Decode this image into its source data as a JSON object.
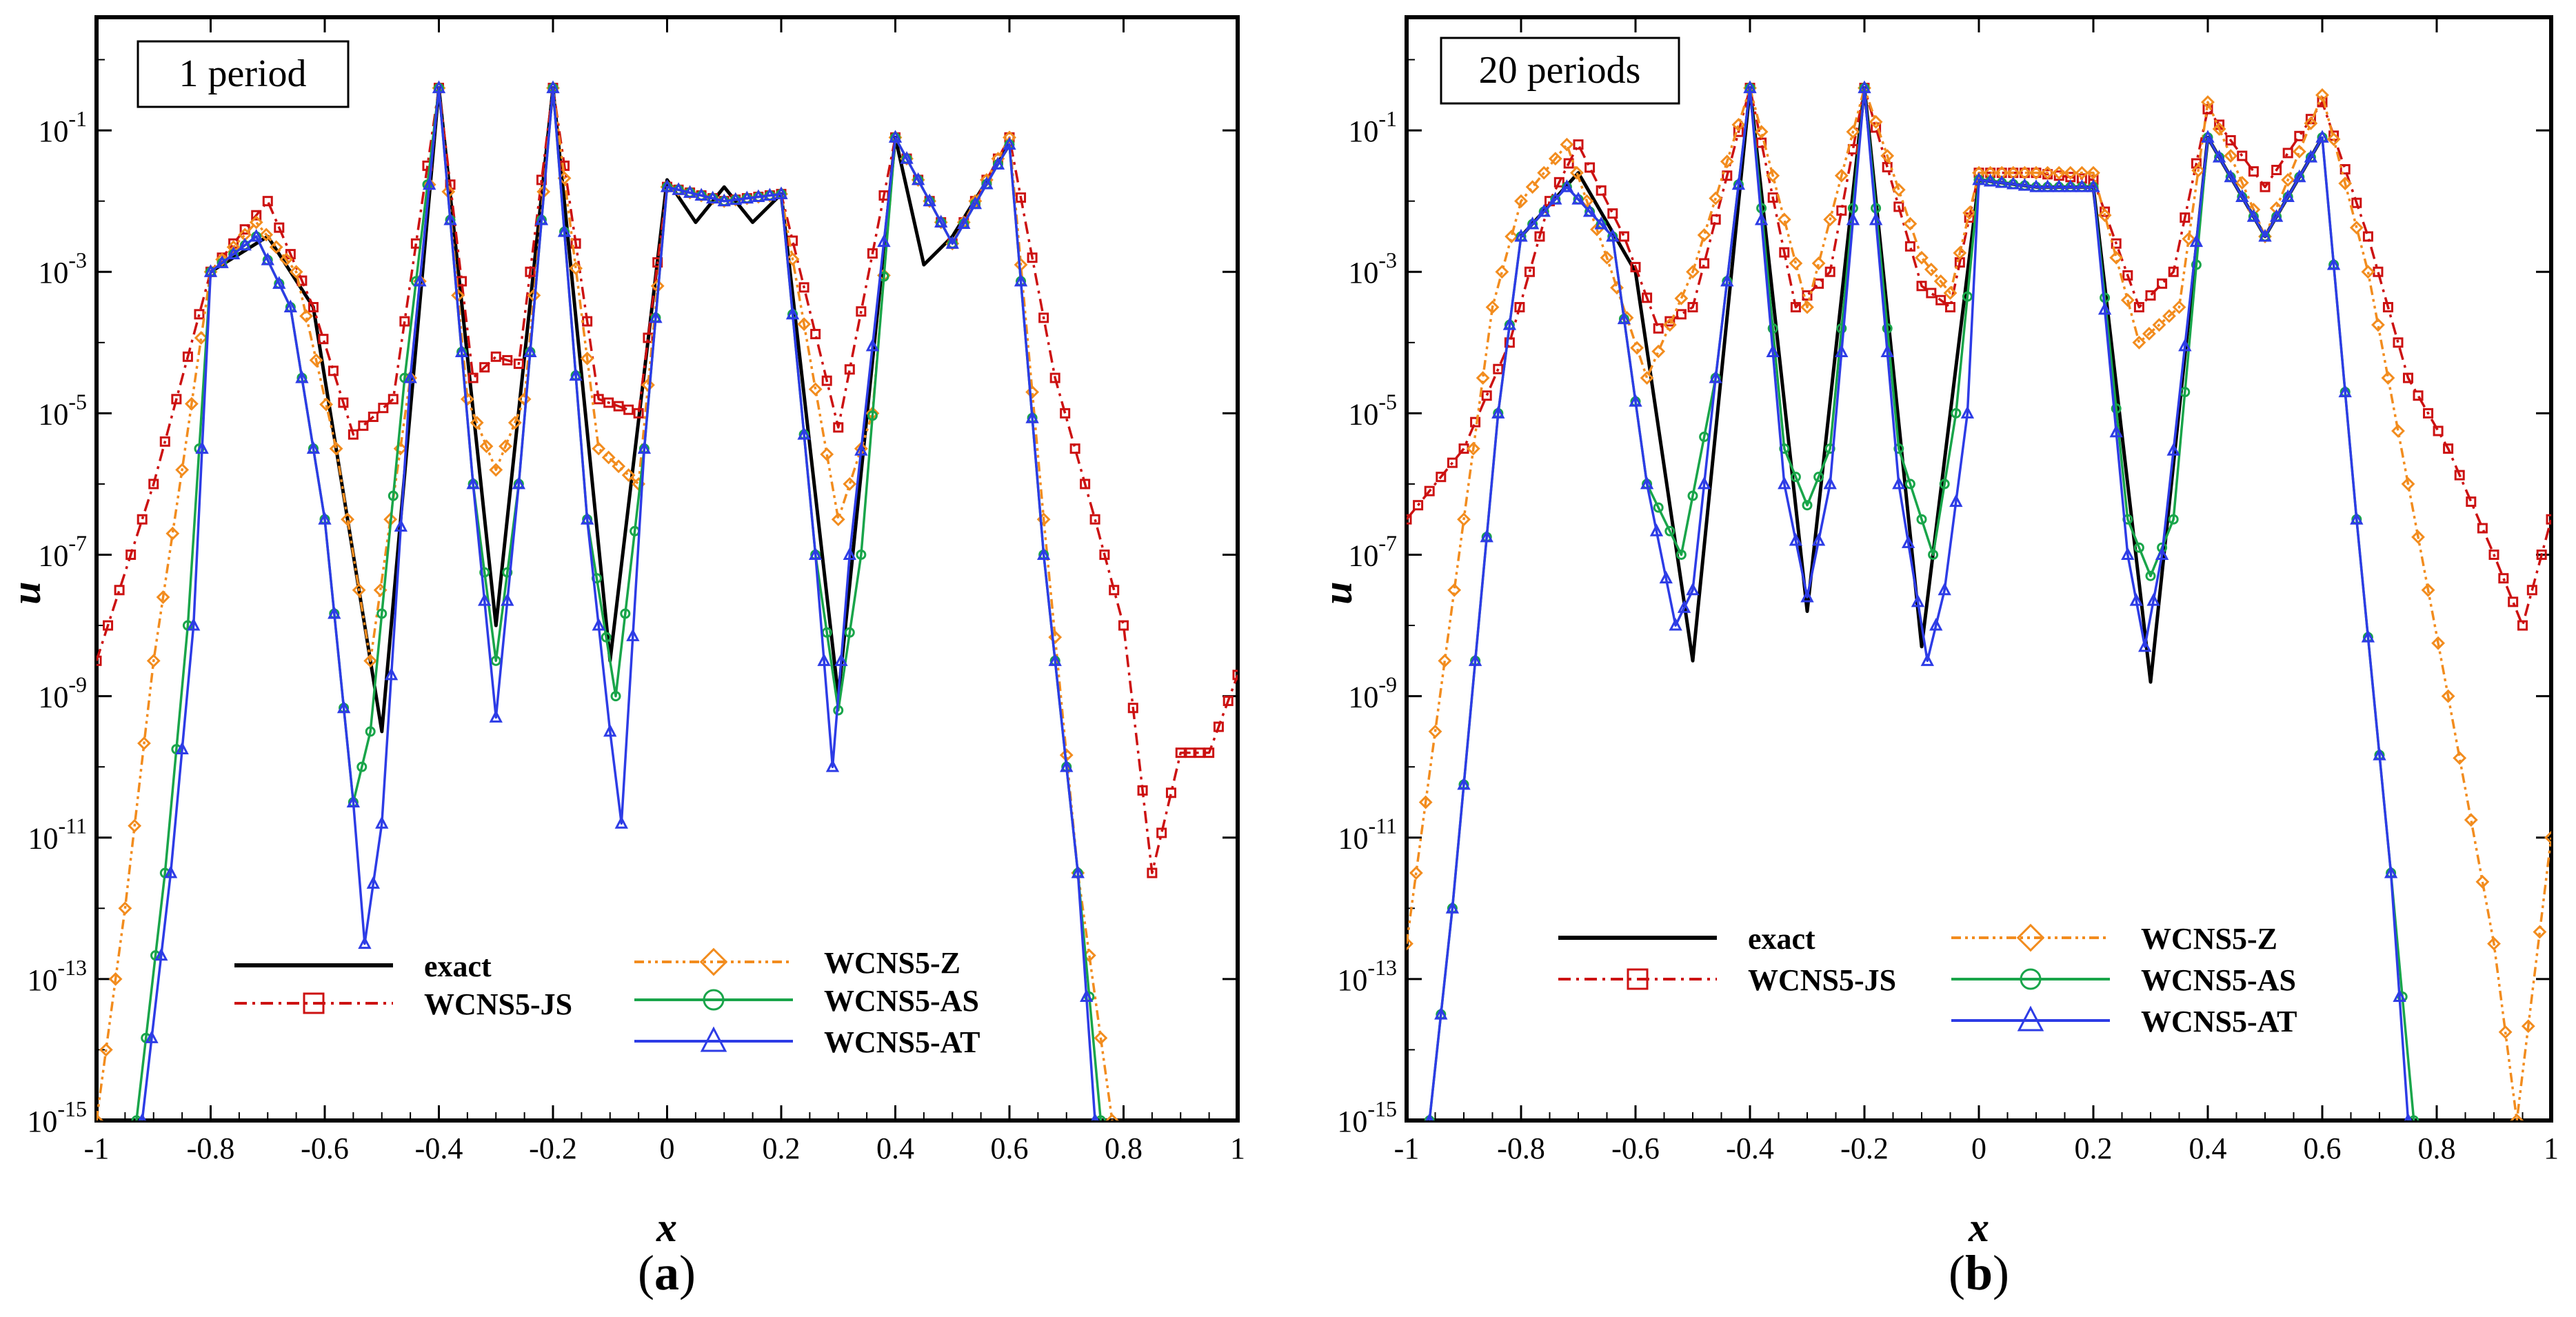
{
  "chart_data": [
    {
      "type": "line",
      "panel_label": "a",
      "annotation": "1 period",
      "xlabel": "x",
      "ylabel": "u",
      "xlim": [
        -1,
        1
      ],
      "ylim_log10": [
        -15,
        0.6
      ],
      "x_ticks": [
        "-1",
        "-0.8",
        "-0.6",
        "-0.4",
        "-0.2",
        "0",
        "0.2",
        "0.4",
        "0.6",
        "0.8",
        "1"
      ],
      "y_ticks": [
        {
          "base": "10",
          "exp": "-1"
        },
        {
          "base": "10",
          "exp": "-3"
        },
        {
          "base": "10",
          "exp": "-5"
        },
        {
          "base": "10",
          "exp": "-7"
        },
        {
          "base": "10",
          "exp": "-9"
        },
        {
          "base": "10",
          "exp": "-11"
        },
        {
          "base": "10",
          "exp": "-13"
        },
        {
          "base": "10",
          "exp": "-15"
        }
      ],
      "legend": [
        "exact",
        "WCNS5-JS",
        "WCNS5-Z",
        "WCNS5-AS",
        "WCNS5-AT"
      ],
      "series": [
        {
          "name": "exact",
          "color": "#000000",
          "marker": "none",
          "x": [
            -0.8,
            -0.7,
            -0.62,
            -0.5,
            -0.4,
            -0.3,
            -0.2,
            -0.1,
            0.0,
            0.05,
            0.1,
            0.15,
            0.2,
            0.3,
            0.4,
            0.45,
            0.5,
            0.6
          ],
          "log10u": [
            -3,
            -2.5,
            -3.5,
            -9.5,
            -0.4,
            -8,
            -0.4,
            -8.5,
            -1.7,
            -2.3,
            -1.8,
            -2.3,
            -1.9,
            -9,
            -1.1,
            -2.9,
            -2.5,
            -1.2
          ]
        },
        {
          "name": "WCNS5-JS",
          "color": "#cc1111",
          "marker": "square",
          "x": [
            -1.0,
            -0.9,
            -0.8,
            -0.7,
            -0.62,
            -0.55,
            -0.48,
            -0.4,
            -0.34,
            -0.3,
            -0.26,
            -0.2,
            -0.12,
            -0.05,
            0.0,
            0.1,
            0.2,
            0.3,
            0.4,
            0.5,
            0.6,
            0.68,
            0.75,
            0.8,
            0.85,
            0.9,
            0.95,
            1.0
          ],
          "log10u": [
            -8.5,
            -6.0,
            -3.0,
            -2.0,
            -3.5,
            -5.3,
            -4.8,
            -0.4,
            -4.5,
            -4.2,
            -4.3,
            -0.4,
            -4.8,
            -5.0,
            -1.8,
            -2.0,
            -1.9,
            -5.2,
            -1.1,
            -2.6,
            -1.1,
            -4.5,
            -6.5,
            -8.0,
            -11.5,
            -9.8,
            -9.8,
            -8.7
          ]
        },
        {
          "name": "WCNS5-Z",
          "color": "#f28c1e",
          "marker": "diamond",
          "x": [
            -1.0,
            -0.95,
            -0.9,
            -0.85,
            -0.8,
            -0.72,
            -0.65,
            -0.58,
            -0.52,
            -0.45,
            -0.4,
            -0.35,
            -0.3,
            -0.25,
            -0.2,
            -0.12,
            -0.05,
            0.0,
            0.1,
            0.2,
            0.3,
            0.36,
            0.4,
            0.5,
            0.6,
            0.66,
            0.72,
            0.78
          ],
          "log10u": [
            -15.0,
            -12.0,
            -8.5,
            -5.8,
            -3.0,
            -2.3,
            -3.0,
            -5.5,
            -8.5,
            -4.5,
            -0.4,
            -4.8,
            -5.8,
            -4.8,
            -0.4,
            -5.5,
            -6.0,
            -1.8,
            -2.0,
            -1.9,
            -6.5,
            -5.0,
            -1.1,
            -2.6,
            -1.1,
            -6.5,
            -11.5,
            -15.0
          ]
        },
        {
          "name": "WCNS5-AS",
          "color": "#19a54a",
          "marker": "circle",
          "x": [
            -0.93,
            -0.88,
            -0.84,
            -0.8,
            -0.72,
            -0.66,
            -0.6,
            -0.55,
            -0.52,
            -0.46,
            -0.4,
            -0.34,
            -0.3,
            -0.26,
            -0.2,
            -0.14,
            -0.09,
            -0.04,
            0.0,
            0.1,
            0.2,
            0.26,
            0.3,
            0.34,
            0.4,
            0.5,
            0.6,
            0.66,
            0.72,
            0.76
          ],
          "log10u": [
            -15.0,
            -11.5,
            -8.0,
            -3.0,
            -2.5,
            -3.5,
            -6.5,
            -10.5,
            -9.5,
            -4.5,
            -0.4,
            -6.0,
            -8.5,
            -6.0,
            -0.4,
            -6.5,
            -9.0,
            -5.5,
            -1.8,
            -2.0,
            -1.9,
            -7.0,
            -9.2,
            -7.0,
            -1.1,
            -2.6,
            -1.2,
            -7.0,
            -11.5,
            -15.0
          ]
        },
        {
          "name": "WCNS5-AT",
          "color": "#2d3ce6",
          "marker": "triangle",
          "x": [
            -0.92,
            -0.87,
            -0.83,
            -0.8,
            -0.72,
            -0.66,
            -0.6,
            -0.55,
            -0.53,
            -0.5,
            -0.45,
            -0.4,
            -0.34,
            -0.3,
            -0.26,
            -0.2,
            -0.14,
            -0.1,
            -0.08,
            -0.04,
            0.0,
            0.1,
            0.2,
            0.26,
            0.29,
            0.32,
            0.4,
            0.5,
            0.6,
            0.66,
            0.72,
            0.75
          ],
          "log10u": [
            -15.0,
            -11.5,
            -8.0,
            -3.0,
            -2.5,
            -3.5,
            -6.5,
            -10.5,
            -12.5,
            -10.8,
            -4.5,
            -0.4,
            -6.0,
            -9.3,
            -6.0,
            -0.4,
            -6.5,
            -9.5,
            -10.8,
            -5.5,
            -1.8,
            -2.0,
            -1.9,
            -7.0,
            -10.0,
            -7.0,
            -1.1,
            -2.6,
            -1.2,
            -7.0,
            -11.5,
            -15.0
          ]
        }
      ]
    },
    {
      "type": "line",
      "panel_label": "b",
      "annotation": "20 periods",
      "xlabel": "x",
      "ylabel": "u",
      "xlim": [
        -1,
        1
      ],
      "ylim_log10": [
        -15,
        0.6
      ],
      "x_ticks": [
        "-1",
        "-0.8",
        "-0.6",
        "-0.4",
        "-0.2",
        "0",
        "0.2",
        "0.4",
        "0.6",
        "0.8",
        "1"
      ],
      "y_ticks": [
        {
          "base": "10",
          "exp": "-1"
        },
        {
          "base": "10",
          "exp": "-3"
        },
        {
          "base": "10",
          "exp": "-5"
        },
        {
          "base": "10",
          "exp": "-7"
        },
        {
          "base": "10",
          "exp": "-9"
        },
        {
          "base": "10",
          "exp": "-11"
        },
        {
          "base": "10",
          "exp": "-13"
        },
        {
          "base": "10",
          "exp": "-15"
        }
      ],
      "legend": [
        "exact",
        "WCNS5-JS",
        "WCNS5-Z",
        "WCNS5-AS",
        "WCNS5-AT"
      ],
      "series": [
        {
          "name": "exact",
          "color": "#000000",
          "marker": "none",
          "x": [
            -0.8,
            -0.7,
            -0.6,
            -0.5,
            -0.4,
            -0.3,
            -0.2,
            -0.1,
            0.0,
            0.1,
            0.2,
            0.3,
            0.4,
            0.5,
            0.6
          ],
          "log10u": [
            -2.5,
            -1.6,
            -3.0,
            -8.5,
            -0.4,
            -7.8,
            -0.4,
            -8.3,
            -1.7,
            -1.8,
            -1.8,
            -8.8,
            -1.1,
            -2.5,
            -1.1
          ]
        },
        {
          "name": "WCNS5-JS",
          "color": "#cc1111",
          "marker": "square",
          "x": [
            -1.0,
            -0.9,
            -0.82,
            -0.75,
            -0.7,
            -0.62,
            -0.56,
            -0.5,
            -0.4,
            -0.32,
            -0.26,
            -0.2,
            -0.1,
            -0.05,
            0.0,
            0.1,
            0.2,
            0.28,
            0.34,
            0.4,
            0.5,
            0.6,
            0.68,
            0.75,
            0.82,
            0.9,
            0.95,
            1.0
          ],
          "log10u": [
            -6.5,
            -5.5,
            -4.0,
            -2.0,
            -1.2,
            -2.5,
            -3.8,
            -3.5,
            -0.4,
            -3.5,
            -3.0,
            -0.4,
            -3.2,
            -3.5,
            -1.6,
            -1.6,
            -1.7,
            -3.5,
            -3.0,
            -0.7,
            -1.8,
            -0.6,
            -2.5,
            -4.5,
            -5.5,
            -7.0,
            -8.0,
            -6.5
          ]
        },
        {
          "name": "WCNS5-Z",
          "color": "#f28c1e",
          "marker": "diamond",
          "x": [
            -1.0,
            -0.95,
            -0.9,
            -0.85,
            -0.8,
            -0.72,
            -0.65,
            -0.58,
            -0.5,
            -0.4,
            -0.3,
            -0.2,
            -0.1,
            -0.05,
            0.0,
            0.1,
            0.2,
            0.28,
            0.35,
            0.4,
            0.5,
            0.6,
            0.68,
            0.75,
            0.82,
            0.9,
            0.94,
            1.0
          ],
          "log10u": [
            -12.5,
            -9.5,
            -6.5,
            -3.5,
            -2.0,
            -1.2,
            -2.8,
            -4.5,
            -3.0,
            -0.4,
            -3.5,
            -0.4,
            -2.8,
            -3.3,
            -1.6,
            -1.6,
            -1.6,
            -4.0,
            -3.5,
            -0.6,
            -2.5,
            -0.5,
            -3.0,
            -6.0,
            -9.0,
            -12.5,
            -15.0,
            -11.0
          ]
        },
        {
          "name": "WCNS5-AS",
          "color": "#19a54a",
          "marker": "circle",
          "x": [
            -0.96,
            -0.92,
            -0.88,
            -0.84,
            -0.8,
            -0.72,
            -0.64,
            -0.58,
            -0.52,
            -0.46,
            -0.4,
            -0.34,
            -0.3,
            -0.26,
            -0.2,
            -0.14,
            -0.08,
            -0.04,
            0.0,
            0.1,
            0.2,
            0.26,
            0.3,
            0.34,
            0.4,
            0.5,
            0.6,
            0.66,
            0.72,
            0.76
          ],
          "log10u": [
            -15.0,
            -12.0,
            -8.5,
            -5.0,
            -2.5,
            -1.8,
            -2.5,
            -6.0,
            -7.0,
            -4.5,
            -0.4,
            -5.5,
            -6.3,
            -5.5,
            -0.4,
            -5.5,
            -7.0,
            -5.0,
            -1.7,
            -1.8,
            -1.8,
            -6.5,
            -7.3,
            -6.5,
            -1.1,
            -2.5,
            -1.1,
            -6.5,
            -11.5,
            -15.0
          ]
        },
        {
          "name": "WCNS5-AT",
          "color": "#2d3ce6",
          "marker": "triangle",
          "x": [
            -0.96,
            -0.92,
            -0.88,
            -0.84,
            -0.8,
            -0.72,
            -0.64,
            -0.58,
            -0.53,
            -0.5,
            -0.46,
            -0.4,
            -0.34,
            -0.3,
            -0.26,
            -0.2,
            -0.14,
            -0.09,
            -0.06,
            -0.02,
            0.0,
            0.1,
            0.2,
            0.26,
            0.29,
            0.32,
            0.4,
            0.5,
            0.6,
            0.66,
            0.72,
            0.75
          ],
          "log10u": [
            -15.0,
            -12.0,
            -8.5,
            -5.0,
            -2.5,
            -1.8,
            -2.5,
            -6.0,
            -8.0,
            -7.5,
            -4.5,
            -0.4,
            -6.0,
            -7.6,
            -6.0,
            -0.4,
            -6.0,
            -8.5,
            -7.5,
            -5.0,
            -1.7,
            -1.8,
            -1.8,
            -7.0,
            -8.3,
            -7.0,
            -1.1,
            -2.5,
            -1.1,
            -6.5,
            -11.5,
            -15.0
          ]
        }
      ]
    }
  ]
}
